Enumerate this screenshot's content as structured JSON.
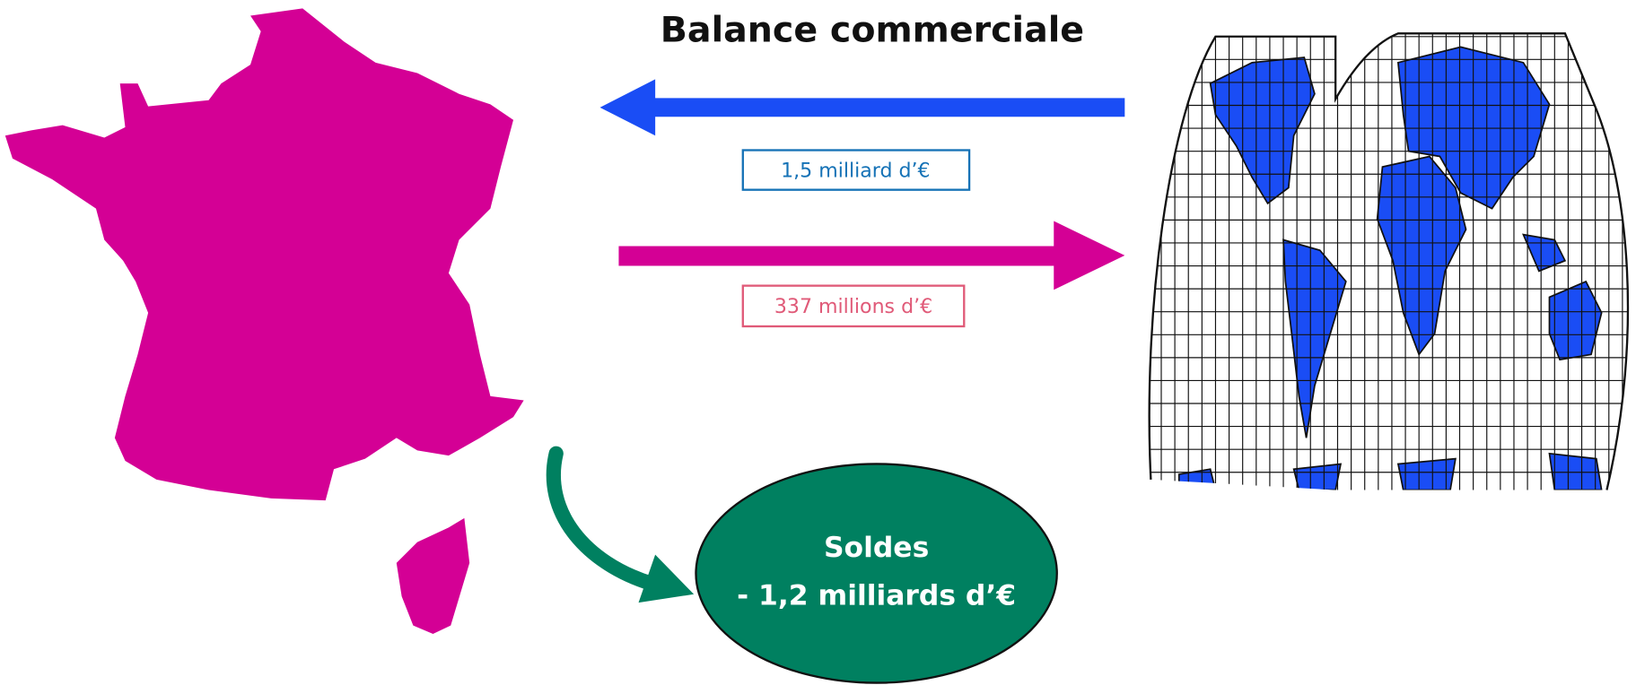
{
  "title": "Balance commerciale",
  "imports": {
    "label": "1,5 milliard d’€"
  },
  "exports": {
    "label": "337 millions d’€"
  },
  "balance": {
    "title": "Soldes",
    "value": "- 1,2 milliards d’€"
  }
}
